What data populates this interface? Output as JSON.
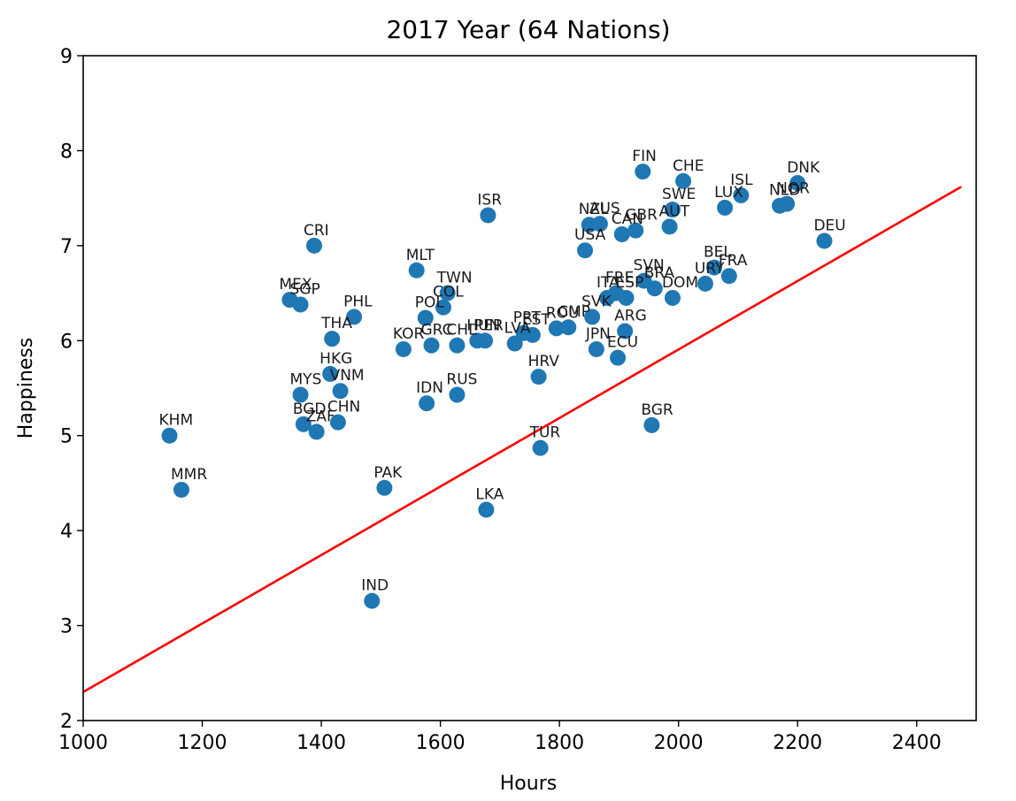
{
  "chart_data": {
    "type": "scatter",
    "title": "2017 Year (64 Nations)",
    "xlabel": "Hours",
    "ylabel": "Happiness",
    "xlim": [
      1000,
      2500
    ],
    "ylim": [
      2,
      9
    ],
    "xticks": [
      1000,
      1200,
      1400,
      1600,
      1800,
      2000,
      2200,
      2400
    ],
    "yticks": [
      2,
      3,
      4,
      5,
      6,
      7,
      8,
      9
    ],
    "grid": false,
    "colors": {
      "points": "#1f77b4",
      "fit_line": "#ff0000"
    },
    "fit_line": {
      "x": [
        1000,
        2475
      ],
      "y": [
        2.3,
        7.62
      ]
    },
    "points": [
      {
        "label": "KHM",
        "x": 1145,
        "y": 5.0
      },
      {
        "label": "MMR",
        "x": 1165,
        "y": 4.43
      },
      {
        "label": "CRI",
        "x": 1388,
        "y": 7.0
      },
      {
        "label": "MEX",
        "x": 1347,
        "y": 6.43
      },
      {
        "label": "SGP",
        "x": 1365,
        "y": 6.38
      },
      {
        "label": "PHL",
        "x": 1455,
        "y": 6.25
      },
      {
        "label": "THA",
        "x": 1418,
        "y": 6.02
      },
      {
        "label": "HKG",
        "x": 1415,
        "y": 5.65
      },
      {
        "label": "MYS",
        "x": 1365,
        "y": 5.43
      },
      {
        "label": "VNM",
        "x": 1432,
        "y": 5.47
      },
      {
        "label": "BGD",
        "x": 1370,
        "y": 5.12
      },
      {
        "label": "ZAF",
        "x": 1392,
        "y": 5.04
      },
      {
        "label": "CHN",
        "x": 1428,
        "y": 5.14
      },
      {
        "label": "IND",
        "x": 1485,
        "y": 3.26
      },
      {
        "label": "PAK",
        "x": 1506,
        "y": 4.45
      },
      {
        "label": "MLT",
        "x": 1560,
        "y": 6.74
      },
      {
        "label": "KOR",
        "x": 1538,
        "y": 5.91
      },
      {
        "label": "POL",
        "x": 1575,
        "y": 6.24
      },
      {
        "label": "GRC",
        "x": 1585,
        "y": 5.95
      },
      {
        "label": "TWN",
        "x": 1612,
        "y": 6.5
      },
      {
        "label": "COL",
        "x": 1605,
        "y": 6.35
      },
      {
        "label": "CHL",
        "x": 1628,
        "y": 5.95
      },
      {
        "label": "IDN",
        "x": 1577,
        "y": 5.34
      },
      {
        "label": "RUS",
        "x": 1628,
        "y": 5.43
      },
      {
        "label": "ISR",
        "x": 1680,
        "y": 7.32
      },
      {
        "label": "HUN",
        "x": 1662,
        "y": 6.0
      },
      {
        "label": "PER",
        "x": 1675,
        "y": 6.0
      },
      {
        "label": "LVA",
        "x": 1725,
        "y": 5.97
      },
      {
        "label": "PRT",
        "x": 1740,
        "y": 6.08
      },
      {
        "label": "EST",
        "x": 1755,
        "y": 6.06
      },
      {
        "label": "ROU",
        "x": 1795,
        "y": 6.13
      },
      {
        "label": "CMP",
        "x": 1815,
        "y": 6.14
      },
      {
        "label": "HRV",
        "x": 1765,
        "y": 5.62
      },
      {
        "label": "LKA",
        "x": 1677,
        "y": 4.22
      },
      {
        "label": "TUR",
        "x": 1768,
        "y": 4.87
      },
      {
        "label": "NZL",
        "x": 1850,
        "y": 7.22
      },
      {
        "label": "AUS",
        "x": 1868,
        "y": 7.23
      },
      {
        "label": "USA",
        "x": 1843,
        "y": 6.95
      },
      {
        "label": "CAN",
        "x": 1905,
        "y": 7.12
      },
      {
        "label": "GBR",
        "x": 1928,
        "y": 7.16
      },
      {
        "label": "FIN",
        "x": 1940,
        "y": 7.78
      },
      {
        "label": "SVK",
        "x": 1855,
        "y": 6.25
      },
      {
        "label": "ITA",
        "x": 1880,
        "y": 6.45
      },
      {
        "label": "ESP",
        "x": 1912,
        "y": 6.45
      },
      {
        "label": "FRE",
        "x": 1895,
        "y": 6.5
      },
      {
        "label": "SVN",
        "x": 1942,
        "y": 6.63
      },
      {
        "label": "ARG",
        "x": 1910,
        "y": 6.1
      },
      {
        "label": "JPN",
        "x": 1862,
        "y": 5.91
      },
      {
        "label": "ECU",
        "x": 1898,
        "y": 5.82
      },
      {
        "label": "BGR",
        "x": 1955,
        "y": 5.11
      },
      {
        "label": "CHE",
        "x": 2008,
        "y": 7.68
      },
      {
        "label": "SWE",
        "x": 1990,
        "y": 7.38
      },
      {
        "label": "AUT",
        "x": 1985,
        "y": 7.2
      },
      {
        "label": "LUX",
        "x": 2078,
        "y": 7.4
      },
      {
        "label": "ISL",
        "x": 2105,
        "y": 7.53
      },
      {
        "label": "NLD",
        "x": 2170,
        "y": 7.42
      },
      {
        "label": "NOR",
        "x": 2182,
        "y": 7.44
      },
      {
        "label": "DNK",
        "x": 2200,
        "y": 7.66
      },
      {
        "label": "DEU",
        "x": 2245,
        "y": 7.05
      },
      {
        "label": "BEL",
        "x": 2060,
        "y": 6.77
      },
      {
        "label": "URY",
        "x": 2045,
        "y": 6.6
      },
      {
        "label": "FRA",
        "x": 2085,
        "y": 6.68
      },
      {
        "label": "DOM",
        "x": 1990,
        "y": 6.45
      },
      {
        "label": "BRA",
        "x": 1960,
        "y": 6.55
      }
    ]
  }
}
